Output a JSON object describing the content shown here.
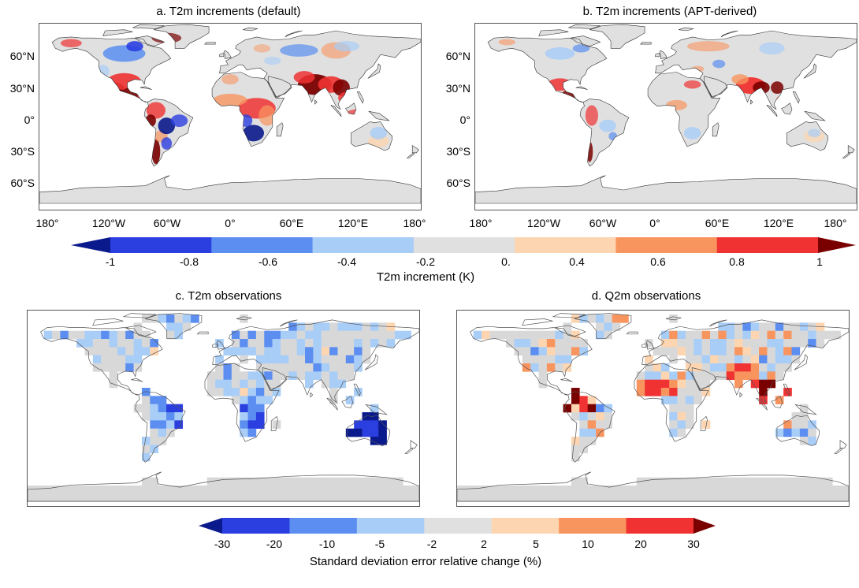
{
  "panels": [
    {
      "id": "a",
      "title": "a. T2m increments (default)",
      "lat_labels": [
        "60°N",
        "30°N",
        "0°",
        "30°S",
        "60°S"
      ],
      "lon_labels": [
        "180°",
        "120°W",
        "60°W",
        "0°",
        "60°E",
        "120°E",
        "180°"
      ]
    },
    {
      "id": "b",
      "title": "b. T2m increments (APT-derived)",
      "lat_labels": [
        "60°N",
        "30°N",
        "0°",
        "30°S",
        "60°S"
      ],
      "lon_labels": [
        "180°",
        "120°W",
        "60°W",
        "0°",
        "60°E",
        "120°E",
        "180°"
      ]
    },
    {
      "id": "c",
      "title": "c. T2m observations"
    },
    {
      "id": "d",
      "title": "d. Q2m observations"
    }
  ],
  "colorbar_top": {
    "title": "T2m increment (K)",
    "tick_labels": [
      "-1",
      "-0.8",
      "-0.6",
      "-0.4",
      "-0.2",
      "0.",
      "0.4",
      "0.6",
      "0.8",
      "1"
    ],
    "colors": [
      "#0a1a8c",
      "#2b3fe0",
      "#5b8ef0",
      "#a8cdf7",
      "#e0e0e0",
      "#fdd5b0",
      "#f8955f",
      "#f03232",
      "#7a0000"
    ]
  },
  "colorbar_bottom": {
    "title": "Standard deviation error relative change (%)",
    "tick_labels": [
      "-30",
      "-20",
      "-10",
      "-5",
      "-2",
      "2",
      "5",
      "10",
      "20",
      "30"
    ],
    "colors": [
      "#0a1a8c",
      "#2b3fe0",
      "#5b8ef0",
      "#a8cdf7",
      "#e0e0e0",
      "#fdd5b0",
      "#f8955f",
      "#f03232",
      "#7a0000"
    ]
  }
}
